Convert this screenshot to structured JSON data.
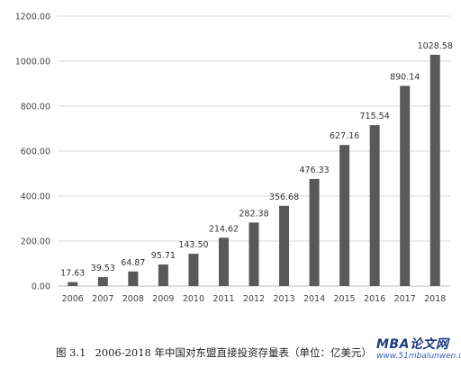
{
  "chart_data": {
    "type": "bar",
    "categories": [
      "2006",
      "2007",
      "2008",
      "2009",
      "2010",
      "2011",
      "2012",
      "2013",
      "2014",
      "2015",
      "2016",
      "2017",
      "2018"
    ],
    "values": [
      17.63,
      39.53,
      64.87,
      95.71,
      143.5,
      214.62,
      282.38,
      356.68,
      476.33,
      627.16,
      715.54,
      890.14,
      1028.58
    ],
    "value_labels": [
      "17.63",
      "39.53",
      "64.87",
      "95.71",
      "143.50",
      "214.62",
      "282.38",
      "356.68",
      "476.33",
      "627.16",
      "715.54",
      "890.14",
      "1028.58"
    ],
    "yticks": [
      "0.00",
      "200.00",
      "400.00",
      "600.00",
      "800.00",
      "1000.00",
      "1200.00"
    ],
    "ylim": [
      0,
      1200
    ],
    "grid": true,
    "bar_color": "#595959",
    "grid_color": "#d9d9d9",
    "title": "",
    "xlabel": "",
    "ylabel": ""
  },
  "caption": {
    "figure_no": "图 3.1",
    "text": "2006-2018 年中国对东盟直接投资存量表（单位：亿美元）"
  },
  "watermark": {
    "brand": "MBA论文网",
    "url": "www.51mbalunwen.com"
  }
}
